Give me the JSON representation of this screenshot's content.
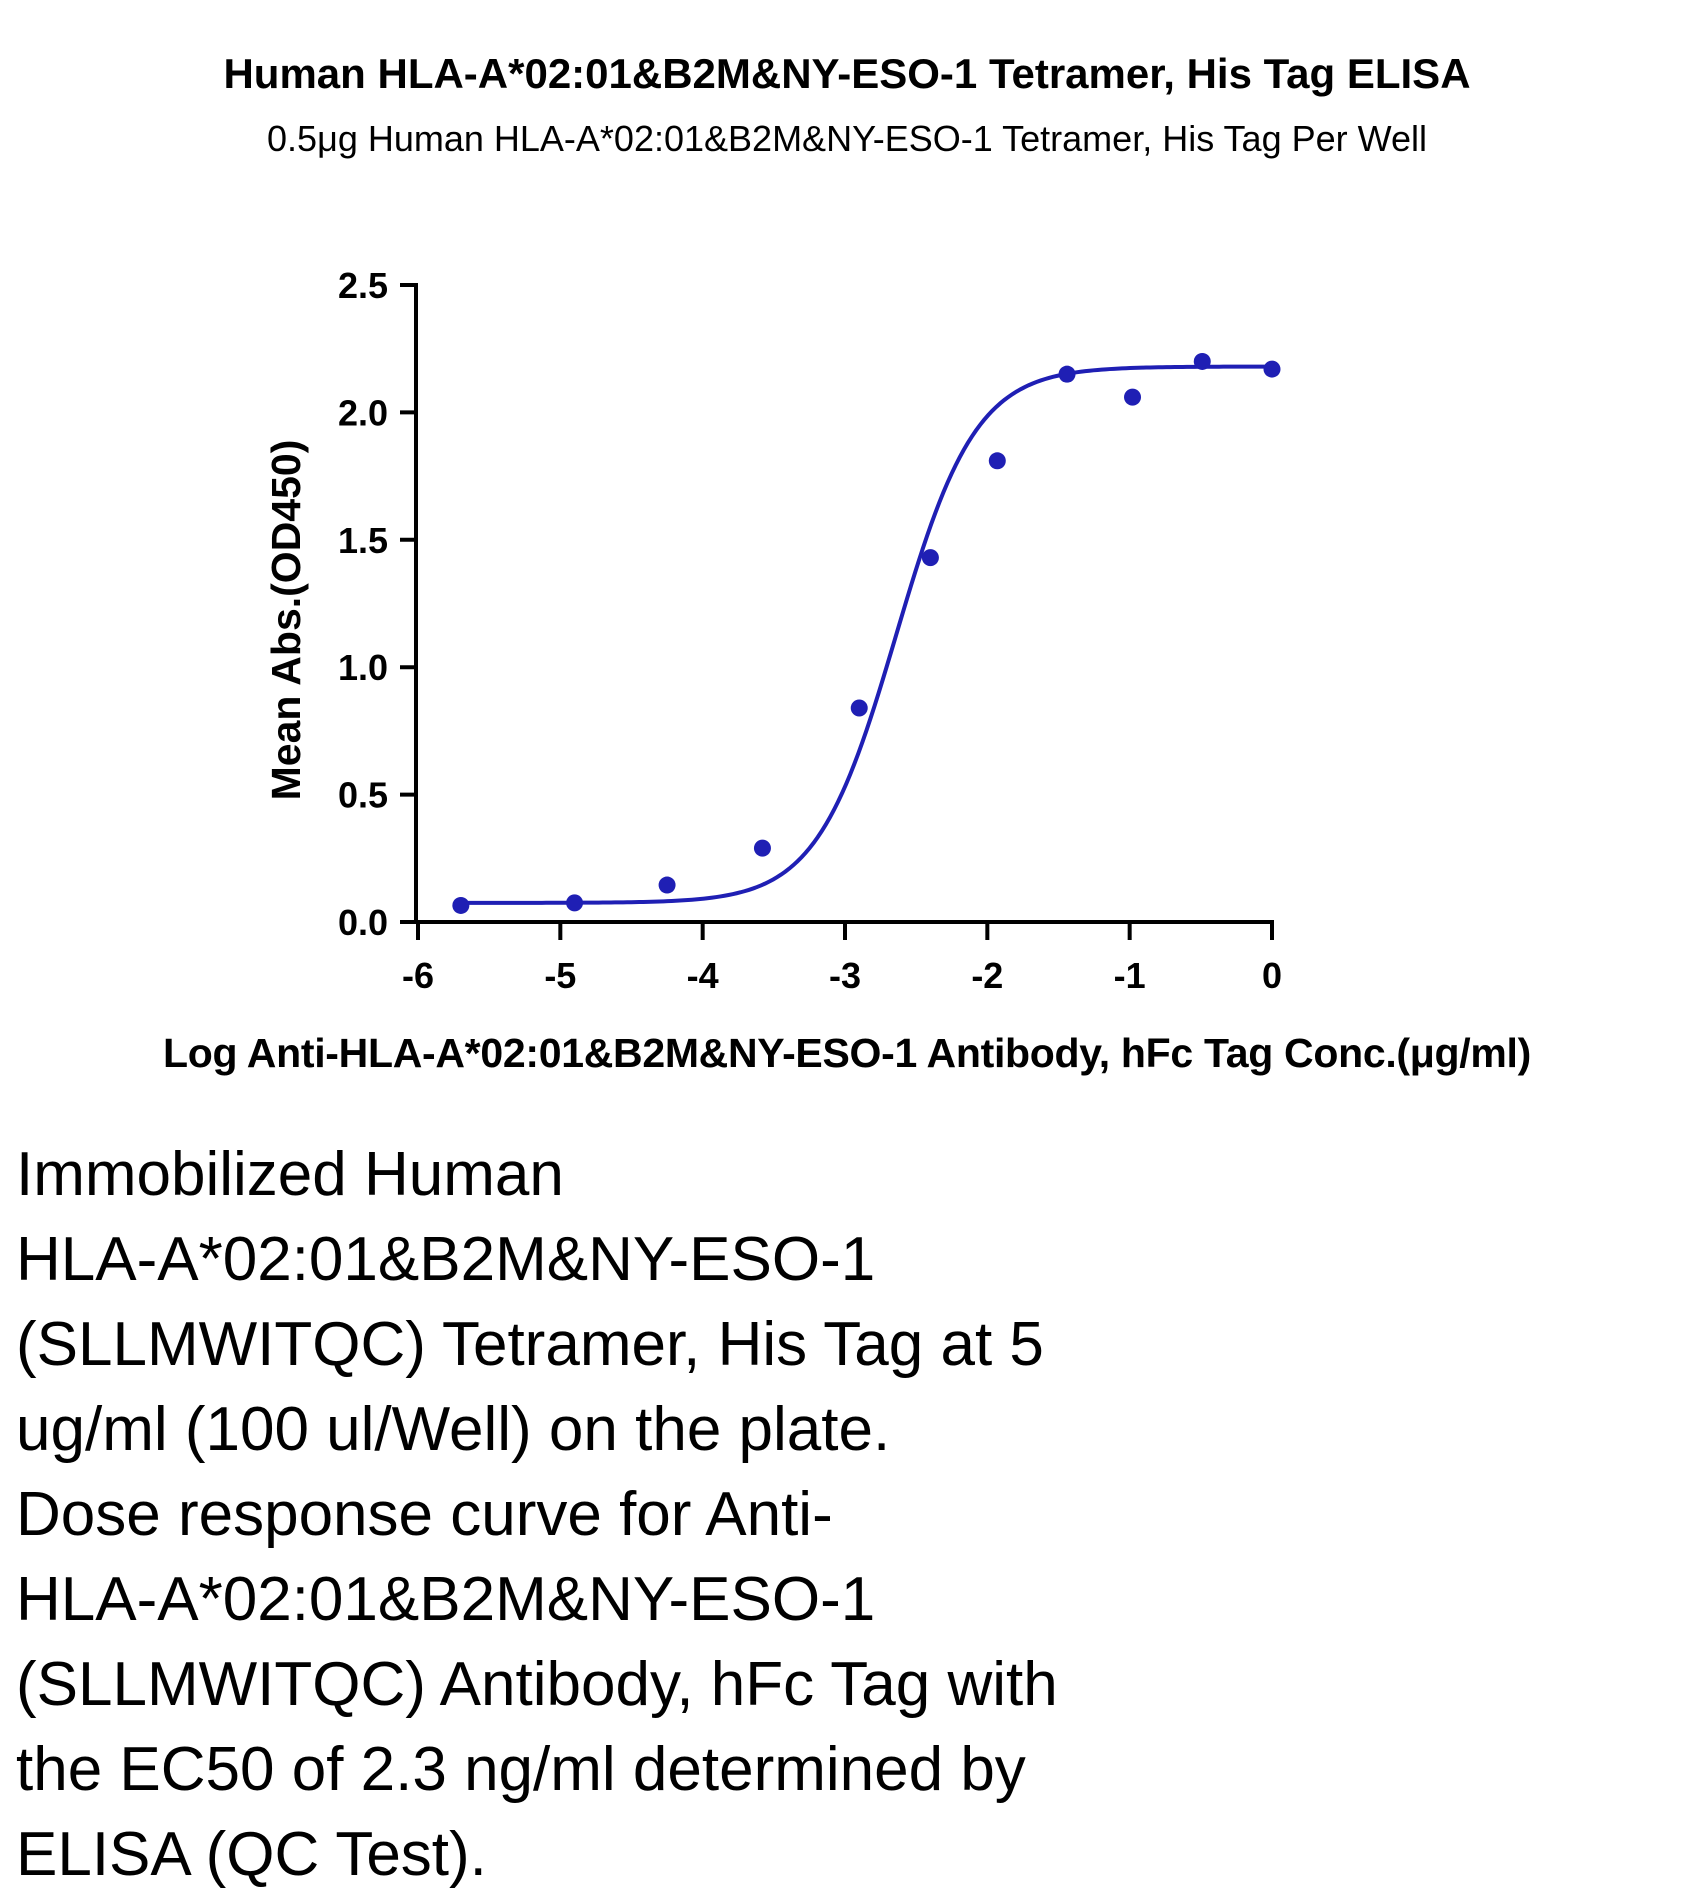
{
  "chart_data": {
    "type": "scatter",
    "title": "Human HLA-A*02:01&B2M&NY-ESO-1 Tetramer, His Tag ELISA",
    "subtitle": "0.5μg Human HLA-A*02:01&B2M&NY-ESO-1 Tetramer, His Tag Per Well",
    "xlabel": "Log Anti-HLA-A*02:01&B2M&NY-ESO-1 Antibody, hFc Tag Conc.(μg/ml)",
    "ylabel": "Mean Abs.(OD450)",
    "xlim": [
      -6,
      0
    ],
    "ylim": [
      0,
      2.5
    ],
    "xticks": [
      "-6",
      "-5",
      "-4",
      "-3",
      "-2",
      "-1",
      "0"
    ],
    "yticks": [
      "0.0",
      "0.5",
      "1.0",
      "1.5",
      "2.0",
      "2.5"
    ],
    "grid": false,
    "fit": "four-parameter logistic",
    "color": "#1f1fb4",
    "series": [
      {
        "x": [
          -5.699,
          -4.9,
          -4.25,
          -3.58,
          -2.9,
          -2.4,
          -1.93,
          -1.44,
          -0.98,
          -0.49,
          0.0
        ],
        "y": [
          0.065,
          0.075,
          0.145,
          0.29,
          0.84,
          1.43,
          1.81,
          2.15,
          2.06,
          2.2,
          2.17
        ]
      }
    ]
  },
  "caption": [
    "Immobilized Human",
    "HLA-A*02:01&B2M&NY-ESO-1",
    "(SLLMWITQC) Tetramer, His Tag at 5",
    "ug/ml (100 ul/Well) on the plate.",
    "Dose response curve for Anti-",
    "HLA-A*02:01&B2M&NY-ESO-1",
    "(SLLMWITQC) Antibody, hFc Tag with",
    "the EC50 of 2.3 ng/ml determined by",
    "ELISA (QC Test)."
  ]
}
